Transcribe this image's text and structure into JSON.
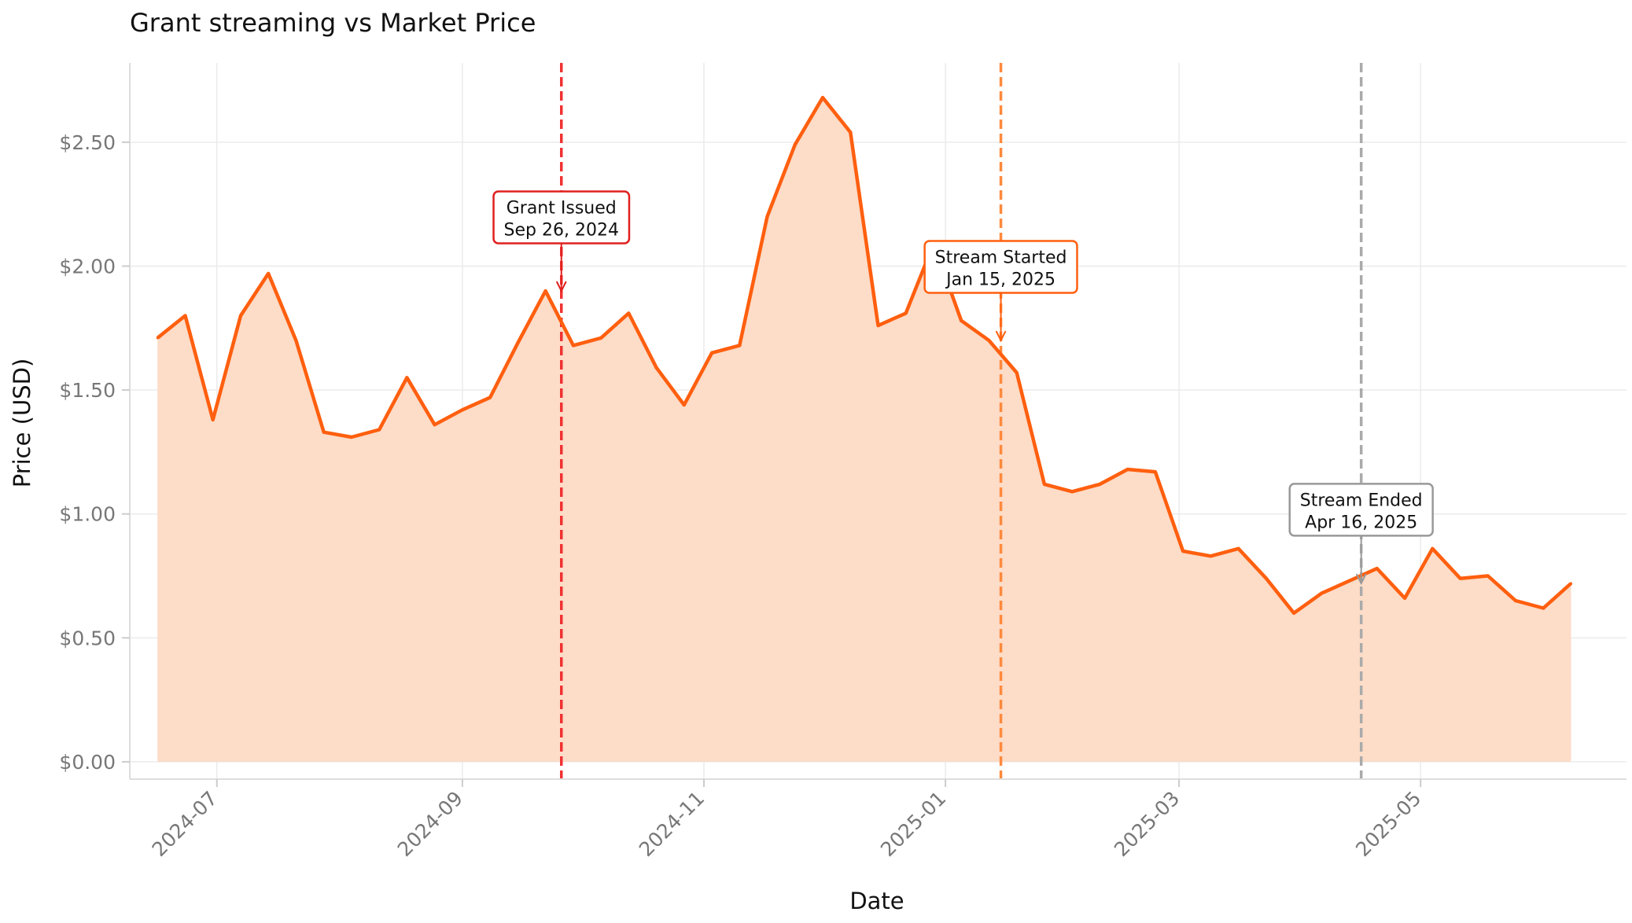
{
  "chart_data": {
    "type": "area",
    "title": "Grant streaming vs Market Price",
    "xlabel": "Date",
    "ylabel": "Price (USD)",
    "xlim": [
      "2024-06-09",
      "2025-06-22"
    ],
    "ylim": [
      -0.07,
      2.82
    ],
    "x_ticks": [
      "2024-07",
      "2024-09",
      "2024-11",
      "2025-01",
      "2025-03",
      "2025-05"
    ],
    "x_tick_dates": [
      "2024-07-01",
      "2024-09-01",
      "2024-11-01",
      "2025-01-01",
      "2025-03-01",
      "2025-05-01"
    ],
    "y_ticks": [
      0,
      0.5,
      1.0,
      1.5,
      2.0,
      2.5
    ],
    "y_tick_labels": [
      "$0.00",
      "$0.50",
      "$1.00",
      "$1.50",
      "$2.00",
      "$2.50"
    ],
    "grid": true,
    "series": [
      {
        "color": "#ff5f0f",
        "fill_color": "#fddcc8",
        "x": [
          "2024-06-16",
          "2024-06-23",
          "2024-06-30",
          "2024-07-07",
          "2024-07-14",
          "2024-07-21",
          "2024-07-28",
          "2024-08-04",
          "2024-08-11",
          "2024-08-18",
          "2024-08-25",
          "2024-09-01",
          "2024-09-08",
          "2024-09-15",
          "2024-09-22",
          "2024-09-29",
          "2024-10-06",
          "2024-10-13",
          "2024-10-20",
          "2024-10-27",
          "2024-11-03",
          "2024-11-10",
          "2024-11-17",
          "2024-11-24",
          "2024-12-01",
          "2024-12-08",
          "2024-12-15",
          "2024-12-22",
          "2024-12-29",
          "2025-01-05",
          "2025-01-12",
          "2025-01-19",
          "2025-01-26",
          "2025-02-02",
          "2025-02-09",
          "2025-02-16",
          "2025-02-23",
          "2025-03-02",
          "2025-03-09",
          "2025-03-16",
          "2025-03-23",
          "2025-03-30",
          "2025-04-06",
          "2025-04-13",
          "2025-04-20",
          "2025-04-27",
          "2025-05-04",
          "2025-05-11",
          "2025-05-18",
          "2025-05-25",
          "2025-06-01",
          "2025-06-08"
        ],
        "y": [
          1.71,
          1.8,
          1.38,
          1.8,
          1.97,
          1.7,
          1.33,
          1.31,
          1.34,
          1.55,
          1.36,
          1.42,
          1.47,
          1.69,
          1.9,
          1.68,
          1.71,
          1.81,
          1.59,
          1.44,
          1.65,
          1.68,
          2.2,
          2.49,
          2.68,
          2.54,
          1.76,
          1.81,
          2.09,
          1.78,
          1.7,
          1.57,
          1.12,
          1.09,
          1.12,
          1.18,
          1.17,
          0.85,
          0.83,
          0.86,
          0.74,
          0.6,
          0.68,
          0.73,
          0.78,
          0.66,
          0.86,
          0.74,
          0.75,
          0.65,
          0.62,
          0.72
        ]
      }
    ],
    "events": [
      {
        "date": "2024-09-26",
        "label": "Grant Issued",
        "sublabel": "Sep 26, 2024",
        "color": "#f03232",
        "text_box_color": "#e0201e",
        "y_arrow": 1.9,
        "y_box": 2.2
      },
      {
        "date": "2025-01-15",
        "label": "Stream Started",
        "sublabel": "Jan 15, 2025",
        "color": "#ff8a3d",
        "text_box_color": "#ff5f0f",
        "y_arrow": 1.7,
        "y_box": 2.0
      },
      {
        "date": "2025-04-16",
        "label": "Stream Ended",
        "sublabel": "Apr 16, 2025",
        "color": "#aaaaaa",
        "text_box_color": "#999999",
        "y_arrow": 0.72,
        "y_box": 1.02
      }
    ]
  }
}
